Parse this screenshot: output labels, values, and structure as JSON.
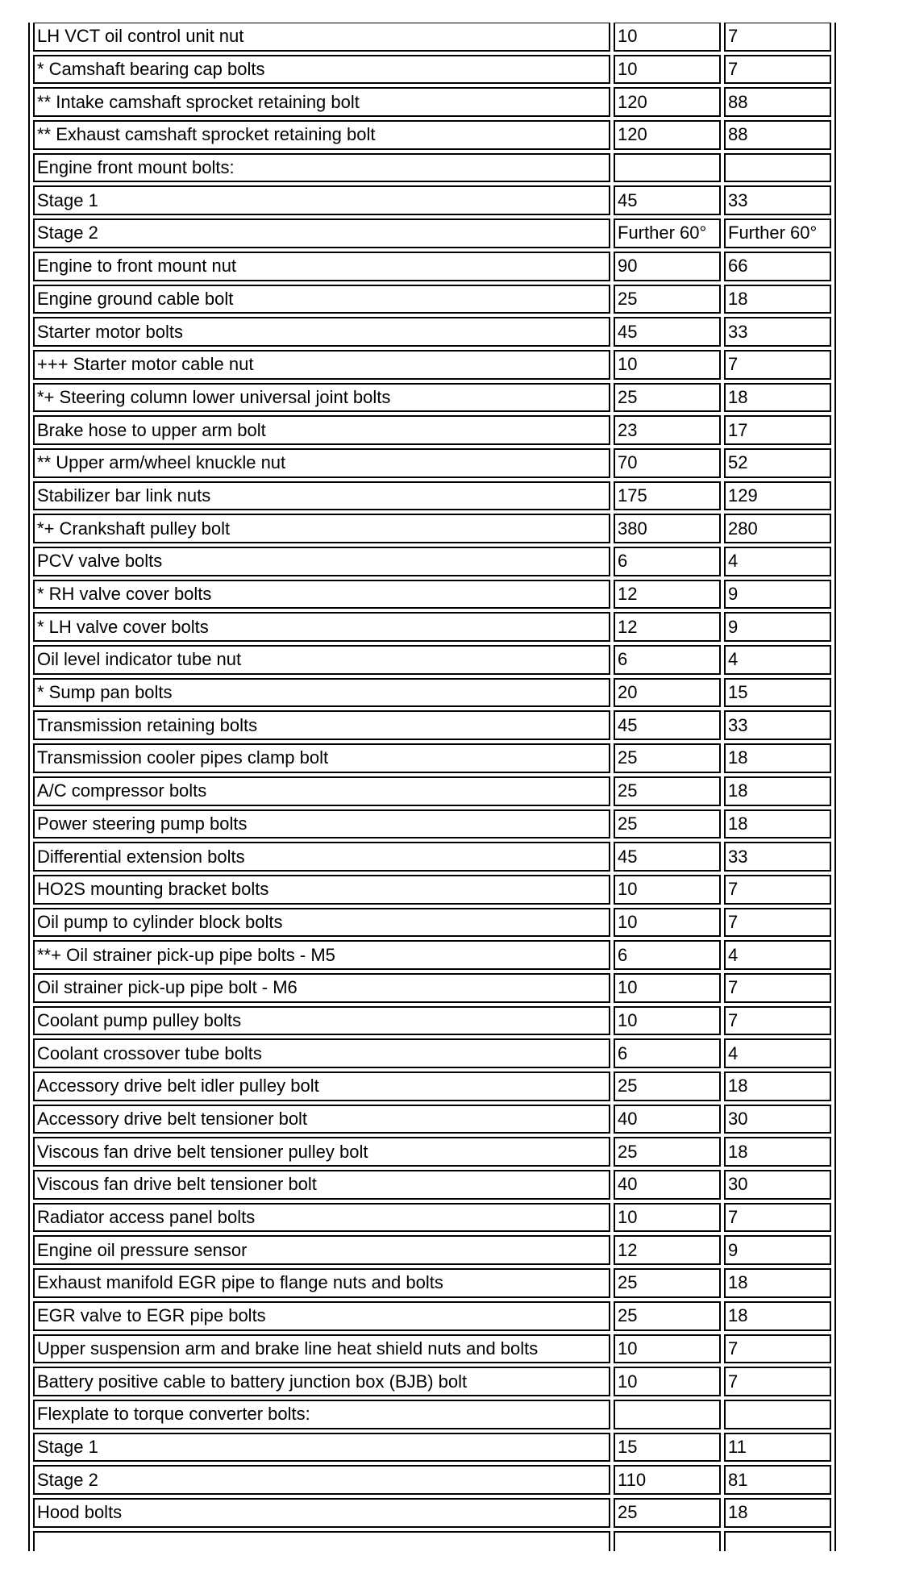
{
  "table": {
    "rows": [
      {
        "label": "LH VCT oil control unit nut",
        "values": [
          "10",
          "7"
        ]
      },
      {
        "label": "* Camshaft bearing cap bolts",
        "values": [
          "10",
          "7"
        ]
      },
      {
        "label": "** Intake camshaft sprocket retaining bolt",
        "values": [
          "120",
          "88"
        ]
      },
      {
        "label": "** Exhaust camshaft sprocket retaining bolt",
        "values": [
          "120",
          "88"
        ]
      },
      {
        "label": "Engine front mount bolts:",
        "values": [
          "",
          ""
        ]
      },
      {
        "label": "Stage 1",
        "values": [
          "45",
          "33"
        ]
      },
      {
        "label": "Stage 2",
        "values": [
          "Further 60°",
          "Further 60°"
        ]
      },
      {
        "label": "Engine to front mount nut",
        "values": [
          "90",
          "66"
        ]
      },
      {
        "label": "Engine ground cable bolt",
        "values": [
          "25",
          "18"
        ]
      },
      {
        "label": "Starter motor bolts",
        "values": [
          "45",
          "33"
        ]
      },
      {
        "label": "+++ Starter motor cable nut",
        "values": [
          "10",
          "7"
        ]
      },
      {
        "label": "*+ Steering column lower universal joint bolts",
        "values": [
          "25",
          "18"
        ]
      },
      {
        "label": "Brake hose to upper arm bolt",
        "values": [
          "23",
          "17"
        ]
      },
      {
        "label": "** Upper arm/wheel knuckle nut",
        "values": [
          "70",
          "52"
        ]
      },
      {
        "label": "Stabilizer bar link nuts",
        "values": [
          "175",
          "129"
        ]
      },
      {
        "label": "*+ Crankshaft pulley bolt",
        "values": [
          "380",
          "280"
        ]
      },
      {
        "label": "PCV valve bolts",
        "values": [
          "6",
          "4"
        ]
      },
      {
        "label": "* RH valve cover bolts",
        "values": [
          "12",
          "9"
        ]
      },
      {
        "label": "* LH valve cover bolts",
        "values": [
          "12",
          "9"
        ]
      },
      {
        "label": "Oil level indicator tube nut",
        "values": [
          "6",
          "4"
        ]
      },
      {
        "label": "* Sump pan bolts",
        "values": [
          "20",
          "15"
        ]
      },
      {
        "label": "Transmission retaining bolts",
        "values": [
          "45",
          "33"
        ]
      },
      {
        "label": "Transmission cooler pipes clamp bolt",
        "values": [
          "25",
          "18"
        ]
      },
      {
        "label": "A/C compressor bolts",
        "values": [
          "25",
          "18"
        ]
      },
      {
        "label": "Power steering pump bolts",
        "values": [
          "25",
          "18"
        ]
      },
      {
        "label": "Differential extension bolts",
        "values": [
          "45",
          "33"
        ]
      },
      {
        "label": "HO2S mounting bracket bolts",
        "values": [
          "10",
          "7"
        ]
      },
      {
        "label": "Oil pump to cylinder block bolts",
        "values": [
          "10",
          "7"
        ]
      },
      {
        "label": "**+ Oil strainer pick-up pipe bolts - M5",
        "values": [
          "6",
          "4"
        ]
      },
      {
        "label": "Oil strainer pick-up pipe bolt - M6",
        "values": [
          "10",
          "7"
        ]
      },
      {
        "label": "Coolant pump pulley bolts",
        "values": [
          "10",
          "7"
        ]
      },
      {
        "label": "Coolant crossover tube bolts",
        "values": [
          "6",
          "4"
        ]
      },
      {
        "label": "Accessory drive belt idler pulley bolt",
        "values": [
          "25",
          "18"
        ]
      },
      {
        "label": "Accessory drive belt tensioner bolt",
        "values": [
          "40",
          "30"
        ]
      },
      {
        "label": "Viscous fan drive belt tensioner pulley bolt",
        "values": [
          "25",
          "18"
        ]
      },
      {
        "label": "Viscous fan drive belt tensioner bolt",
        "values": [
          "40",
          "30"
        ]
      },
      {
        "label": "Radiator access panel bolts",
        "values": [
          "10",
          "7"
        ]
      },
      {
        "label": "Engine oil pressure sensor",
        "values": [
          "12",
          "9"
        ]
      },
      {
        "label": "Exhaust manifold EGR pipe to flange nuts and bolts",
        "values": [
          "25",
          "18"
        ]
      },
      {
        "label": "EGR valve to EGR pipe bolts",
        "values": [
          "25",
          "18"
        ]
      },
      {
        "label": "Upper suspension arm and brake line heat shield nuts and bolts",
        "values": [
          "10",
          "7"
        ]
      },
      {
        "label": "Battery positive cable to battery junction box (BJB) bolt",
        "values": [
          "10",
          "7"
        ]
      },
      {
        "label": "Flexplate to torque converter bolts:",
        "values": [
          "",
          ""
        ]
      },
      {
        "label": "Stage 1",
        "values": [
          "15",
          "11"
        ]
      },
      {
        "label": "Stage 2",
        "values": [
          "110",
          "81"
        ]
      },
      {
        "label": "Hood bolts",
        "values": [
          "25",
          "18"
        ]
      },
      {
        "label": "",
        "values": [
          "",
          ""
        ]
      }
    ],
    "border_color": "#000000",
    "background_color": "#ffffff"
  }
}
